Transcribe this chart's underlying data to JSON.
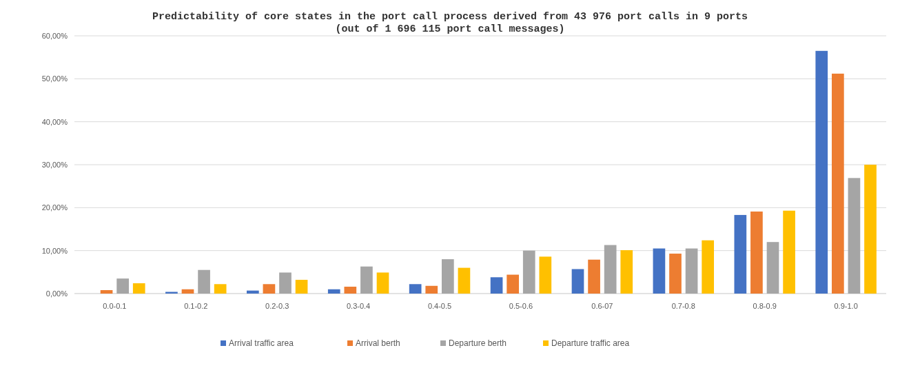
{
  "chart_data": {
    "type": "bar",
    "title": "Predictability of core states in the port call process derived from 43 976 port calls in 9 ports",
    "subtitle": "(out of 1 696 115 port call messages)",
    "categories": [
      "0.0-0.1",
      "0.1-0.2",
      "0.2-0.3",
      "0.3-0.4",
      "0.4-0.5",
      "0.5-0.6",
      "0.6-07",
      "0.7-0.8",
      "0.8-0.9",
      "0.9-1.0"
    ],
    "series": [
      {
        "name": "Arrival traffic area",
        "color": "#4472c4",
        "values": [
          0,
          0.4,
          0.7,
          1.0,
          2.2,
          3.8,
          5.7,
          10.5,
          18.3,
          56.5
        ]
      },
      {
        "name": "Arrival berth",
        "color": "#ed7d31",
        "values": [
          0.8,
          1.0,
          2.2,
          1.6,
          1.8,
          4.4,
          7.9,
          9.3,
          19.1,
          51.2
        ]
      },
      {
        "name": "Departure berth",
        "color": "#a5a5a5",
        "values": [
          3.5,
          5.5,
          4.9,
          6.3,
          8.0,
          10.0,
          11.3,
          10.5,
          12.0,
          26.9
        ]
      },
      {
        "name": "Departure traffic area",
        "color": "#ffc000",
        "values": [
          2.4,
          2.2,
          3.2,
          4.9,
          6.0,
          8.6,
          10.1,
          12.4,
          19.3,
          30.0
        ]
      }
    ],
    "ylim": [
      0,
      60
    ],
    "yticks": [
      {
        "value": 0,
        "label": "0,00%"
      },
      {
        "value": 10,
        "label": "10,00%"
      },
      {
        "value": 20,
        "label": "20,00%"
      },
      {
        "value": 30,
        "label": "30,00%"
      },
      {
        "value": 40,
        "label": "40,00%"
      },
      {
        "value": 50,
        "label": "50,00%"
      },
      {
        "value": 60,
        "label": "60,00%"
      }
    ],
    "grid": "y",
    "legend": "bottom"
  }
}
